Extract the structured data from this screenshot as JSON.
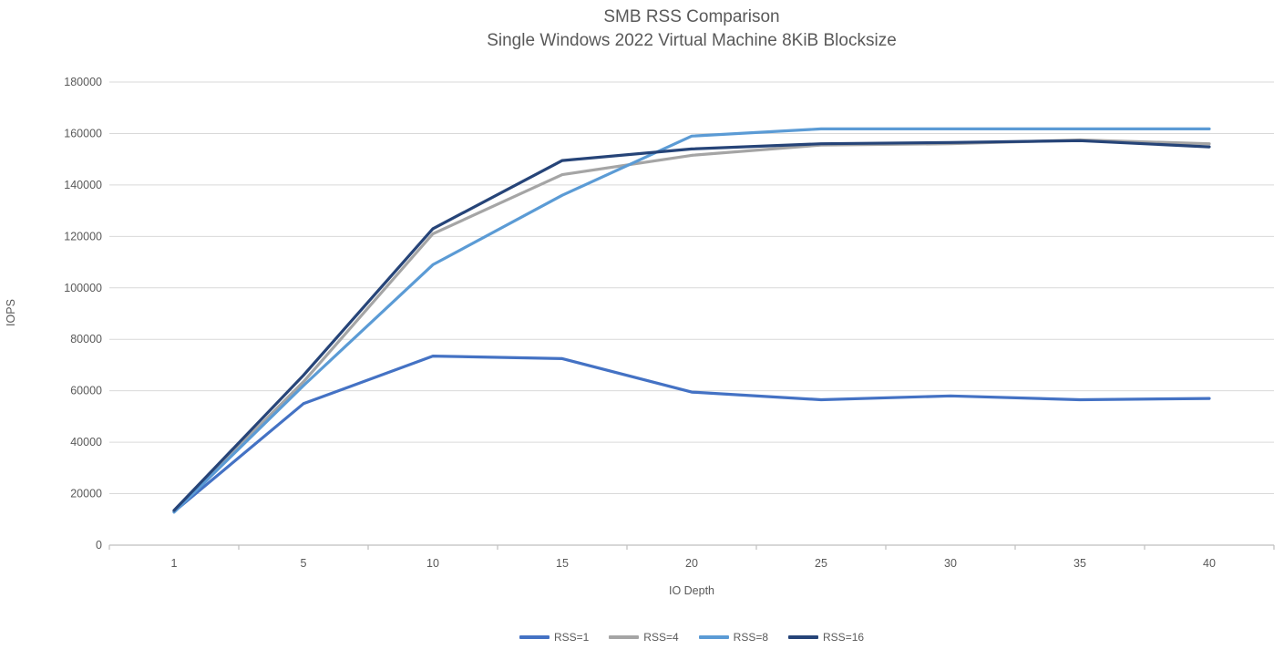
{
  "chart_data": {
    "type": "line",
    "title": "SMB RSS Comparison",
    "subtitle": "Single Windows 2022 Virtual Machine 8KiB Blocksize",
    "xlabel": "IO Depth",
    "ylabel": "IOPS",
    "categories": [
      "1",
      "5",
      "10",
      "15",
      "20",
      "25",
      "30",
      "35",
      "40"
    ],
    "y_ticks": [
      0,
      20000,
      40000,
      60000,
      80000,
      100000,
      120000,
      140000,
      160000,
      180000
    ],
    "ylim": [
      0,
      180000
    ],
    "grid": "horizontal",
    "legend_position": "bottom",
    "series": [
      {
        "name": "RSS=1",
        "color": "#4472C4",
        "values": [
          13000,
          55000,
          73500,
          72500,
          59500,
          56500,
          58000,
          56500,
          57000
        ]
      },
      {
        "name": "RSS=4",
        "color": "#A5A5A5",
        "values": [
          13200,
          63500,
          121000,
          144000,
          151500,
          155500,
          156000,
          157500,
          156000
        ]
      },
      {
        "name": "RSS=8",
        "color": "#5B9BD5",
        "values": [
          12800,
          62000,
          109000,
          136000,
          159000,
          161800,
          161800,
          161800,
          161800
        ]
      },
      {
        "name": "RSS=16",
        "color": "#264478",
        "values": [
          13500,
          66000,
          123000,
          149500,
          154000,
          156000,
          156500,
          157200,
          154800
        ]
      }
    ]
  },
  "colors": {
    "text": "#595959",
    "gridline": "#D9D9D9",
    "axis_line": "#BFBFBF"
  }
}
